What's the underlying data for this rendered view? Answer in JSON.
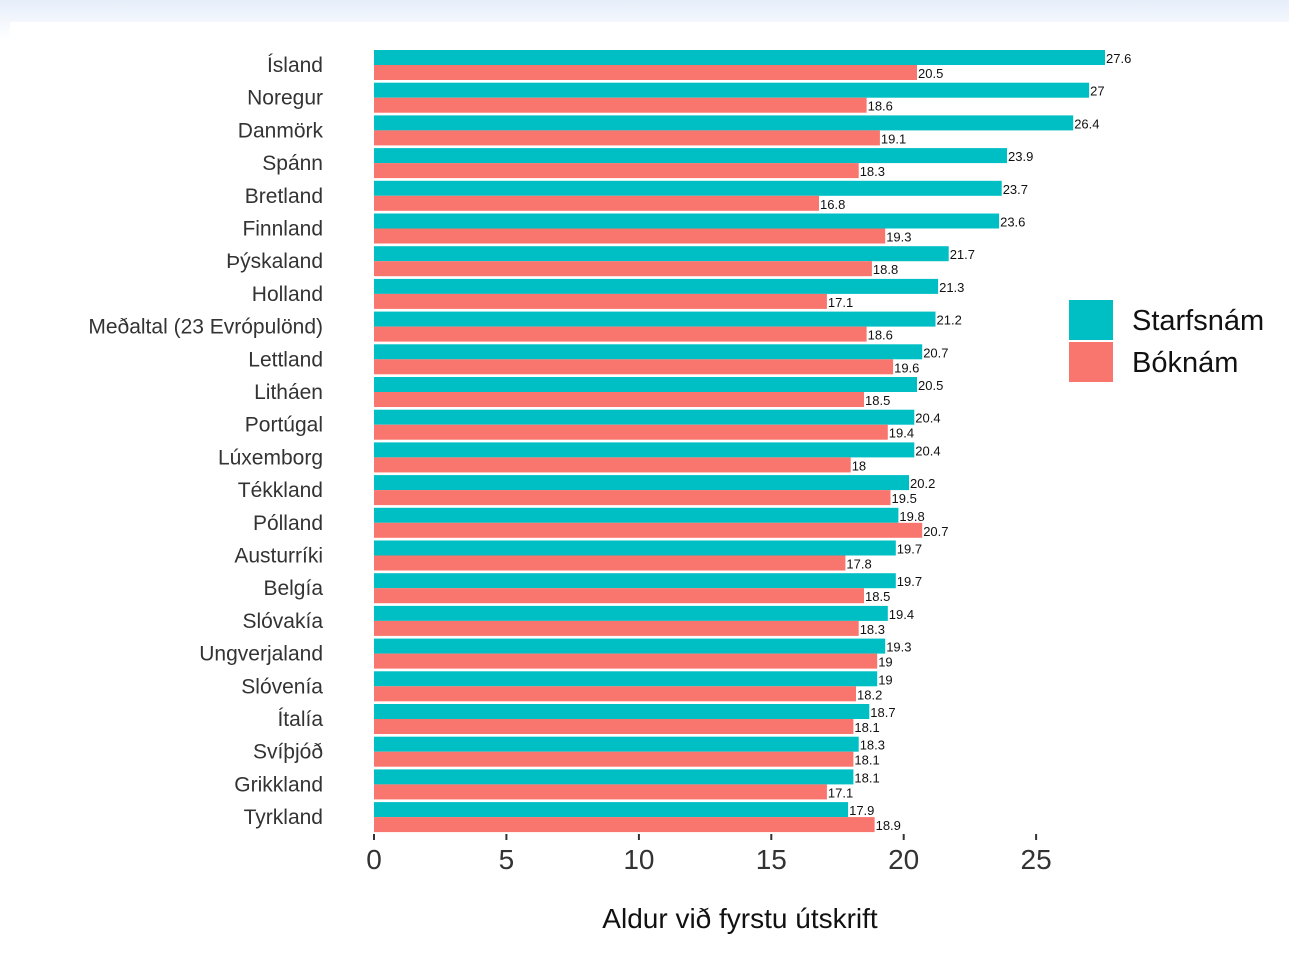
{
  "chart_data": {
    "type": "bar",
    "orientation": "horizontal",
    "xlabel": "Aldur við fyrstu útskrift",
    "xlim": [
      0,
      27.6
    ],
    "xticks": [
      0,
      5,
      10,
      15,
      20,
      25
    ],
    "grid": false,
    "legend_position": "right",
    "categories": [
      "Ísland",
      "Noregur",
      "Danmörk",
      "Spánn",
      "Bretland",
      "Finnland",
      "Þýskaland",
      "Holland",
      "Meðaltal (23 Evrópulönd)",
      "Lettland",
      "Litháen",
      "Portúgal",
      "Lúxemborg",
      "Tékkland",
      "Pólland",
      "Austurríki",
      "Belgía",
      "Slóvakía",
      "Ungverjaland",
      "Slóvenía",
      "Ítalía",
      "Svíþjóð",
      "Grikkland",
      "Tyrkland"
    ],
    "series": [
      {
        "name": "Starfsnám",
        "color": "#00bfc4",
        "values": [
          27.6,
          27,
          26.4,
          23.9,
          23.7,
          23.6,
          21.7,
          21.3,
          21.2,
          20.7,
          20.5,
          20.4,
          20.4,
          20.2,
          19.8,
          19.7,
          19.7,
          19.4,
          19.3,
          19,
          18.7,
          18.3,
          18.1,
          17.9
        ],
        "labels": [
          "27.6",
          "27",
          "26.4",
          "23.9",
          "23.7",
          "23.6",
          "21.7",
          "21.3",
          "21.2",
          "20.7",
          "20.5",
          "20.4",
          "20.4",
          "20.2",
          "19.8",
          "19.7",
          "19.7",
          "19.4",
          "19.3",
          "19",
          "18.7",
          "18.3",
          "18.1",
          "17.9"
        ]
      },
      {
        "name": "Bóknám",
        "color": "#f8766d",
        "values": [
          20.5,
          18.6,
          19.1,
          18.3,
          16.8,
          19.3,
          18.8,
          17.1,
          18.6,
          19.6,
          18.5,
          19.4,
          18,
          19.5,
          20.7,
          17.8,
          18.5,
          18.3,
          19,
          18.2,
          18.1,
          18.1,
          17.1,
          18.9
        ],
        "labels": [
          "20.5",
          "18.6",
          "19.1",
          "18.3",
          "16.8",
          "19.3",
          "18.8",
          "17.1",
          "18.6",
          "19.6",
          "18.5",
          "19.4",
          "18",
          "19.5",
          "20.7",
          "17.8",
          "18.5",
          "18.3",
          "19",
          "18.2",
          "18.1",
          "18.1",
          "17.1",
          "18.9"
        ]
      }
    ]
  }
}
